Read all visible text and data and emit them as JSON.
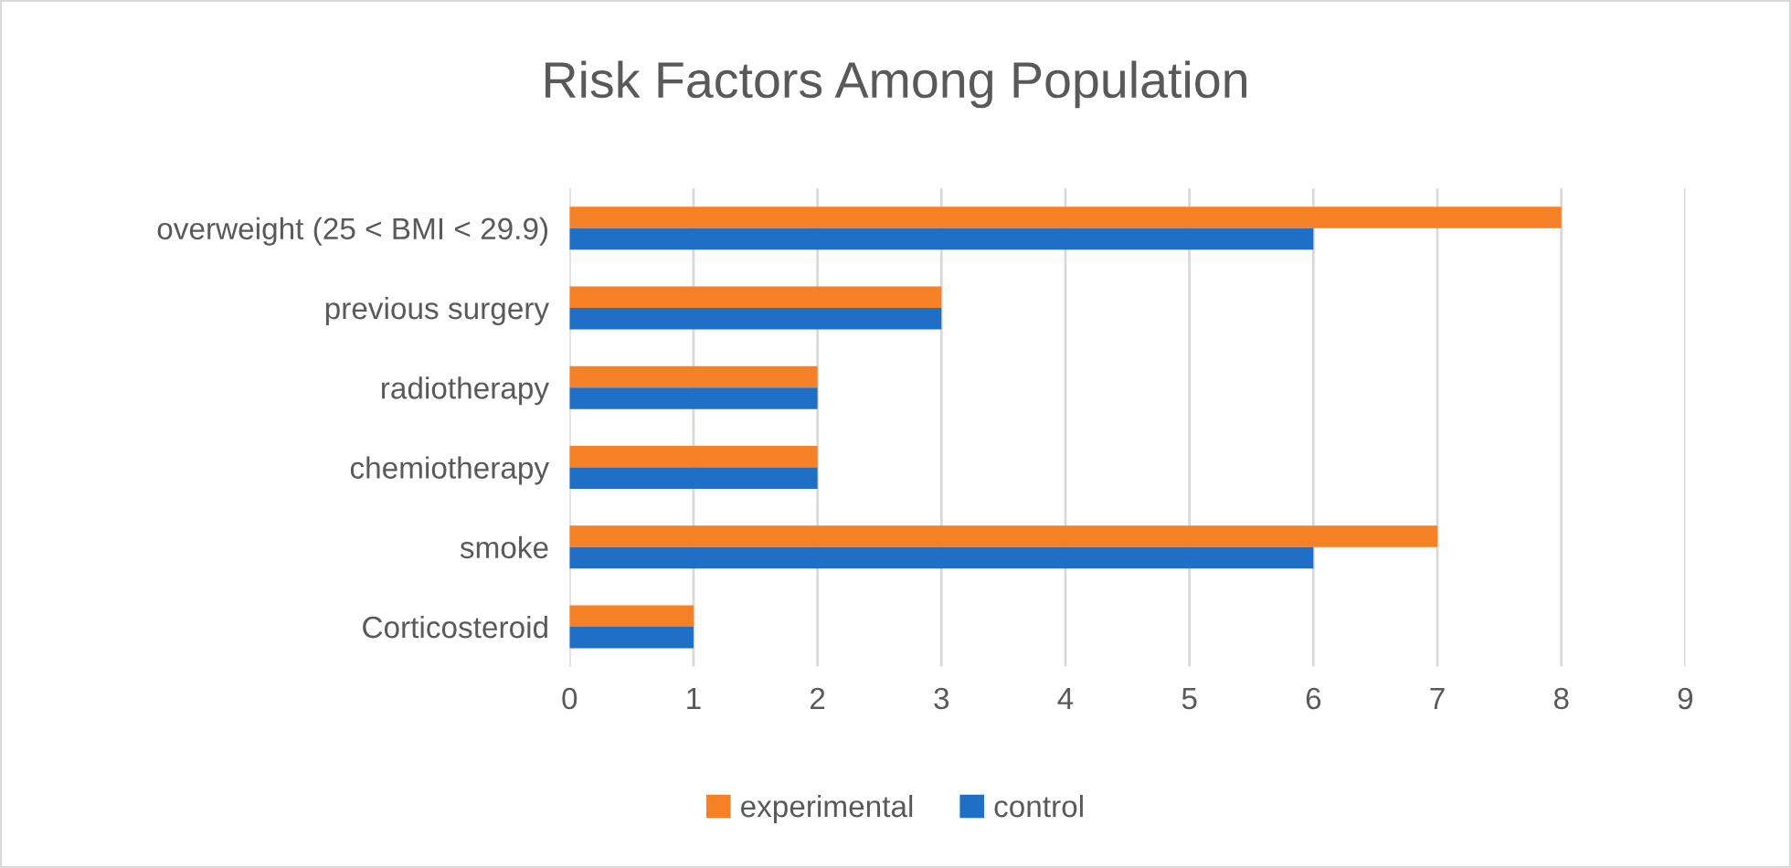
{
  "chart_data": {
    "type": "bar",
    "orientation": "horizontal",
    "title": "Risk Factors Among Population",
    "categories": [
      "overweight (25 < BMI < 29.9)",
      "previous surgery",
      "radiotherapy",
      "chemiotherapy",
      "smoke",
      "Corticosteroid"
    ],
    "series": [
      {
        "name": "experimental",
        "color": "#f58025",
        "values": [
          8,
          3,
          2,
          2,
          7,
          1
        ]
      },
      {
        "name": "control",
        "color": "#1f6fc6",
        "values": [
          6,
          3,
          2,
          2,
          6,
          1
        ]
      }
    ],
    "xlim": [
      0,
      9
    ],
    "xticks": [
      0,
      1,
      2,
      3,
      4,
      5,
      6,
      7,
      8,
      9
    ],
    "grid": "x",
    "legend": "bottom"
  }
}
